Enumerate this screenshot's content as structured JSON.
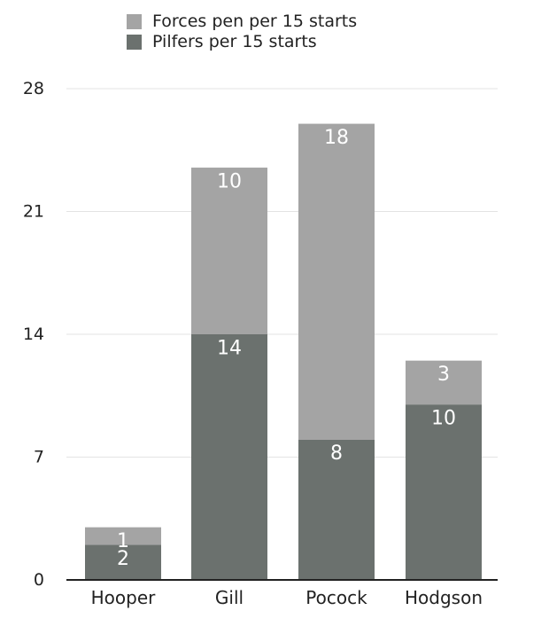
{
  "chart_data": {
    "type": "bar",
    "stacked": true,
    "categories": [
      "Hooper",
      "Gill",
      "Pocock",
      "Hodgson"
    ],
    "series": [
      {
        "name": "Pilfers per 15 starts",
        "color": "#6b716e",
        "values": [
          2,
          14,
          8,
          10
        ],
        "labels": [
          "2",
          "14",
          "8",
          "10"
        ]
      },
      {
        "name": "Forces pen per 15 starts",
        "color": "#a4a4a4",
        "values": [
          1,
          9.5,
          18,
          2.5
        ],
        "labels": [
          "1",
          "10",
          "18",
          "3"
        ]
      }
    ],
    "legend_order": [
      "Forces pen per 15 starts",
      "Pilfers per 15 starts"
    ],
    "ylim": [
      0,
      28
    ],
    "yticks": [
      "0",
      "7",
      "14",
      "21",
      "28"
    ],
    "grid": true,
    "legend_position": "top-left"
  }
}
